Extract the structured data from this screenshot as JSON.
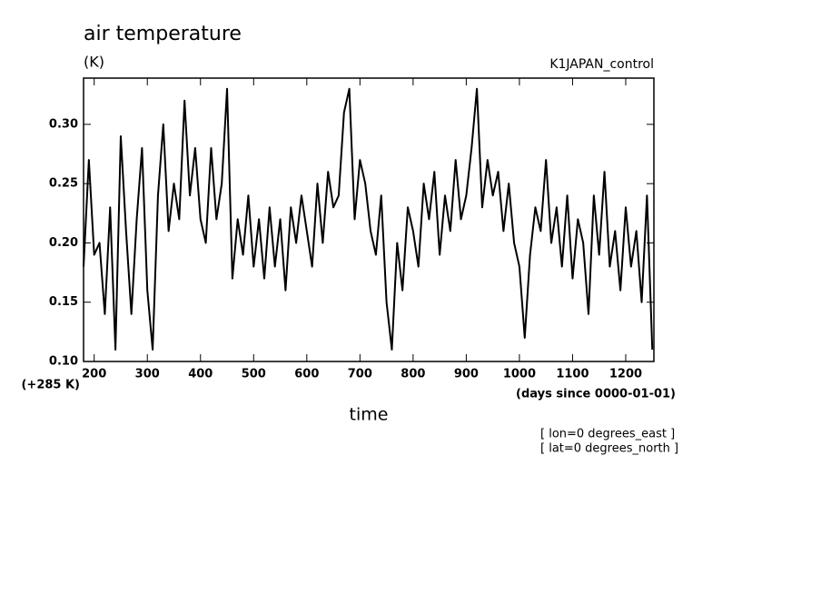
{
  "chart_data": {
    "type": "line",
    "title": "air temperature",
    "ylabel": "(K)",
    "subtitle": "K1JAPAN_control",
    "y_offset_label": "(+285 K)",
    "xlabel": "time",
    "x_unit_label": "(days since 0000-01-01)",
    "annotations": [
      "[ lon=0 degrees_east ]",
      "[ lat=0 degrees_north ]"
    ],
    "xlim": [
      180,
      1253
    ],
    "ylim": [
      0.1,
      0.339
    ],
    "xticks": [
      200,
      300,
      400,
      500,
      600,
      700,
      800,
      900,
      1000,
      1100,
      1200
    ],
    "yticks": [
      {
        "value": 0.1,
        "label": "0.10"
      },
      {
        "value": 0.15,
        "label": "0.15"
      },
      {
        "value": 0.2,
        "label": "0.20"
      },
      {
        "value": 0.25,
        "label": "0.25"
      },
      {
        "value": 0.3,
        "label": "0.30"
      }
    ],
    "grid": false,
    "series": [
      {
        "color": "#000000",
        "x": [
          180,
          190,
          200,
          210,
          220,
          230,
          240,
          250,
          260,
          270,
          280,
          290,
          300,
          310,
          320,
          330,
          340,
          350,
          360,
          370,
          380,
          390,
          400,
          410,
          420,
          430,
          440,
          450,
          460,
          470,
          480,
          490,
          500,
          510,
          520,
          530,
          540,
          550,
          560,
          570,
          580,
          590,
          600,
          610,
          620,
          630,
          640,
          650,
          660,
          670,
          680,
          690,
          700,
          710,
          720,
          730,
          740,
          750,
          760,
          770,
          780,
          790,
          800,
          810,
          820,
          830,
          840,
          850,
          860,
          870,
          880,
          890,
          900,
          910,
          920,
          930,
          940,
          950,
          960,
          970,
          980,
          990,
          1000,
          1010,
          1020,
          1030,
          1040,
          1050,
          1060,
          1070,
          1080,
          1090,
          1100,
          1110,
          1120,
          1130,
          1140,
          1150,
          1160,
          1170,
          1180,
          1190,
          1200,
          1210,
          1220,
          1230,
          1240,
          1250
        ],
        "values": [
          0.18,
          0.27,
          0.19,
          0.2,
          0.14,
          0.23,
          0.11,
          0.29,
          0.21,
          0.14,
          0.22,
          0.28,
          0.16,
          0.11,
          0.24,
          0.3,
          0.21,
          0.25,
          0.22,
          0.32,
          0.24,
          0.28,
          0.22,
          0.2,
          0.28,
          0.22,
          0.25,
          0.33,
          0.17,
          0.22,
          0.19,
          0.24,
          0.18,
          0.22,
          0.17,
          0.23,
          0.18,
          0.22,
          0.16,
          0.23,
          0.2,
          0.24,
          0.21,
          0.18,
          0.25,
          0.2,
          0.26,
          0.23,
          0.24,
          0.31,
          0.33,
          0.22,
          0.27,
          0.25,
          0.21,
          0.19,
          0.24,
          0.15,
          0.11,
          0.2,
          0.16,
          0.23,
          0.21,
          0.18,
          0.25,
          0.22,
          0.26,
          0.19,
          0.24,
          0.21,
          0.27,
          0.22,
          0.24,
          0.28,
          0.33,
          0.23,
          0.27,
          0.24,
          0.26,
          0.21,
          0.25,
          0.2,
          0.18,
          0.12,
          0.19,
          0.23,
          0.21,
          0.27,
          0.2,
          0.23,
          0.18,
          0.24,
          0.17,
          0.22,
          0.2,
          0.14,
          0.24,
          0.19,
          0.26,
          0.18,
          0.21,
          0.16,
          0.23,
          0.18,
          0.21,
          0.15,
          0.24,
          0.11
        ]
      }
    ]
  }
}
